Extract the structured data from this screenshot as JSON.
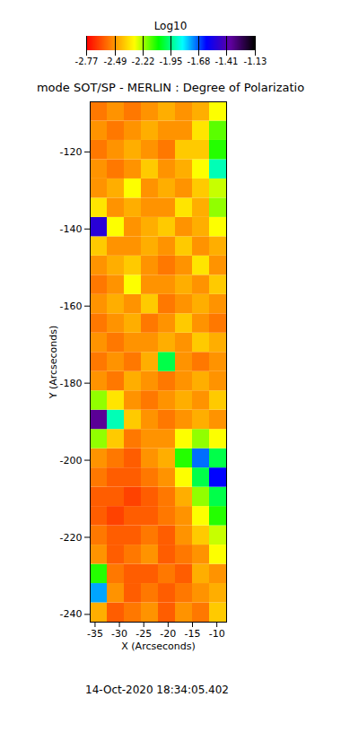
{
  "chart_data": {
    "type": "heatmap",
    "title": "mode SOT/SP - MERLIN : Degree of Polarizatio",
    "caption": "14-Oct-2020 18:34:05.402",
    "x_label": "X (Arcseconds)",
    "y_label": "Y (Arcseconds)",
    "xlim": [
      -36,
      -8
    ],
    "ylim": [
      -242,
      -107
    ],
    "xticks": [
      -35,
      -30,
      -25,
      -20,
      -15,
      -10
    ],
    "yticks": [
      -240,
      -220,
      -200,
      -180,
      -160,
      -140,
      -120
    ],
    "grid": false,
    "x_edges": [
      -36,
      -32.5,
      -29,
      -25.5,
      -22,
      -18.5,
      -15,
      -11.5,
      -8
    ],
    "y_edges": [
      -242,
      -237,
      -232,
      -227,
      -222,
      -217,
      -212,
      -207,
      -202,
      -197,
      -192,
      -187,
      -182,
      -177,
      -172,
      -167,
      -162,
      -157,
      -152,
      -147,
      -142,
      -137,
      -132,
      -127,
      -122,
      -117,
      -112,
      -107
    ],
    "values": [
      [
        -2.45,
        -2.6,
        -2.55,
        -2.5,
        -2.6,
        -2.5,
        -2.55,
        -2.4
      ],
      [
        -1.75,
        -2.5,
        -2.6,
        -2.55,
        -2.6,
        -2.55,
        -2.5,
        -2.45
      ],
      [
        -2.1,
        -2.55,
        -2.6,
        -2.6,
        -2.55,
        -2.6,
        -2.45,
        -2.5
      ],
      [
        -2.5,
        -2.6,
        -2.55,
        -2.5,
        -2.6,
        -2.55,
        -2.5,
        -2.3
      ],
      [
        -2.55,
        -2.6,
        -2.6,
        -2.55,
        -2.6,
        -2.5,
        -2.4,
        -2.25
      ],
      [
        -2.6,
        -2.65,
        -2.6,
        -2.6,
        -2.55,
        -2.5,
        -2.3,
        -2.1
      ],
      [
        -2.6,
        -2.6,
        -2.65,
        -2.6,
        -2.55,
        -2.45,
        -2.2,
        -2.0
      ],
      [
        -2.55,
        -2.6,
        -2.6,
        -2.55,
        -2.5,
        -2.3,
        -2.0,
        -1.6
      ],
      [
        -2.5,
        -2.55,
        -2.6,
        -2.5,
        -2.45,
        -2.1,
        -1.7,
        -2.0
      ],
      [
        -2.2,
        -2.4,
        -2.55,
        -2.5,
        -2.5,
        -2.3,
        -2.2,
        -2.3
      ],
      [
        -1.35,
        -1.9,
        -2.4,
        -2.5,
        -2.55,
        -2.5,
        -2.45,
        -2.5
      ],
      [
        -2.2,
        -2.35,
        -2.5,
        -2.55,
        -2.5,
        -2.45,
        -2.5,
        -2.4
      ],
      [
        -2.5,
        -2.55,
        -2.45,
        -2.5,
        -2.55,
        -2.5,
        -2.45,
        -2.5
      ],
      [
        -2.55,
        -2.5,
        -2.55,
        -2.45,
        -2.0,
        -2.5,
        -2.55,
        -2.5
      ],
      [
        -2.5,
        -2.55,
        -2.5,
        -2.5,
        -2.45,
        -2.5,
        -2.4,
        -2.45
      ],
      [
        -2.55,
        -2.5,
        -2.45,
        -2.55,
        -2.5,
        -2.4,
        -2.5,
        -2.55
      ],
      [
        -2.5,
        -2.45,
        -2.5,
        -2.4,
        -2.55,
        -2.5,
        -2.45,
        -2.5
      ],
      [
        -2.55,
        -2.5,
        -2.3,
        -2.5,
        -2.5,
        -2.45,
        -2.5,
        -2.4
      ],
      [
        -2.5,
        -2.45,
        -2.4,
        -2.5,
        -2.55,
        -2.5,
        -2.35,
        -2.5
      ],
      [
        -2.4,
        -2.5,
        -2.5,
        -2.45,
        -2.5,
        -2.4,
        -2.5,
        -2.45
      ],
      [
        -1.5,
        -2.3,
        -2.5,
        -2.45,
        -2.4,
        -2.5,
        -2.45,
        -2.3
      ],
      [
        -2.35,
        -2.5,
        -2.45,
        -2.5,
        -2.5,
        -2.35,
        -2.45,
        -2.2
      ],
      [
        -2.5,
        -2.45,
        -2.3,
        -2.5,
        -2.45,
        -2.5,
        -2.4,
        -2.25
      ],
      [
        -2.5,
        -2.55,
        -2.5,
        -2.4,
        -2.5,
        -2.45,
        -2.3,
        -1.9
      ],
      [
        -2.55,
        -2.5,
        -2.45,
        -2.5,
        -2.55,
        -2.4,
        -2.4,
        -2.1
      ],
      [
        -2.5,
        -2.55,
        -2.5,
        -2.45,
        -2.5,
        -2.5,
        -2.35,
        -2.15
      ],
      [
        -2.55,
        -2.5,
        -2.55,
        -2.5,
        -2.45,
        -2.5,
        -2.45,
        -2.3
      ]
    ],
    "colorbar": {
      "label": "Log10",
      "range": [
        -2.77,
        -1.13
      ],
      "ticks": [
        -2.77,
        -2.49,
        -2.22,
        -1.95,
        -1.68,
        -1.41,
        -1.13
      ]
    }
  }
}
